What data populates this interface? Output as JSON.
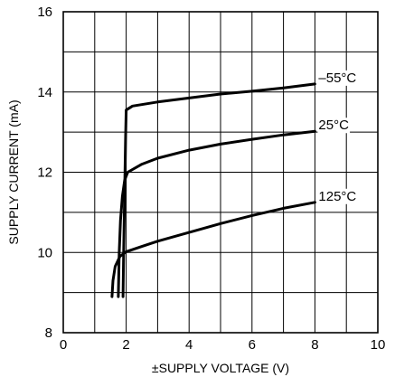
{
  "chart_data": {
    "type": "line",
    "xlabel": "±SUPPLY VOLTAGE (V)",
    "ylabel": "SUPPLY CURRENT (mA)",
    "xlim": [
      0,
      10
    ],
    "ylim": [
      8,
      16
    ],
    "xticks": [
      0,
      2,
      4,
      6,
      8,
      10
    ],
    "yticks": [
      8,
      10,
      12,
      14,
      16
    ],
    "x_minor_step": 1,
    "y_minor_step": 1,
    "grid": true,
    "series": [
      {
        "name": "–55°C",
        "points": [
          [
            1.9,
            8.9
          ],
          [
            1.92,
            10.0
          ],
          [
            1.95,
            11.5
          ],
          [
            1.98,
            12.8
          ],
          [
            2.0,
            13.55
          ],
          [
            2.2,
            13.65
          ],
          [
            3.0,
            13.75
          ],
          [
            4.0,
            13.85
          ],
          [
            5.0,
            13.95
          ],
          [
            6.0,
            14.02
          ],
          [
            7.0,
            14.1
          ],
          [
            8.0,
            14.2
          ]
        ]
      },
      {
        "name": "25°C",
        "points": [
          [
            1.75,
            8.9
          ],
          [
            1.78,
            10.0
          ],
          [
            1.82,
            10.8
          ],
          [
            1.88,
            11.4
          ],
          [
            1.95,
            11.8
          ],
          [
            2.05,
            12.0
          ],
          [
            2.5,
            12.2
          ],
          [
            3.0,
            12.35
          ],
          [
            4.0,
            12.55
          ],
          [
            5.0,
            12.7
          ],
          [
            6.0,
            12.82
          ],
          [
            7.0,
            12.93
          ],
          [
            8.0,
            13.02
          ]
        ]
      },
      {
        "name": "125°C",
        "points": [
          [
            1.55,
            8.9
          ],
          [
            1.58,
            9.3
          ],
          [
            1.65,
            9.65
          ],
          [
            1.8,
            9.9
          ],
          [
            2.0,
            10.02
          ],
          [
            2.5,
            10.15
          ],
          [
            3.0,
            10.28
          ],
          [
            4.0,
            10.5
          ],
          [
            5.0,
            10.72
          ],
          [
            6.0,
            10.92
          ],
          [
            7.0,
            11.1
          ],
          [
            8.0,
            11.25
          ]
        ]
      }
    ]
  }
}
